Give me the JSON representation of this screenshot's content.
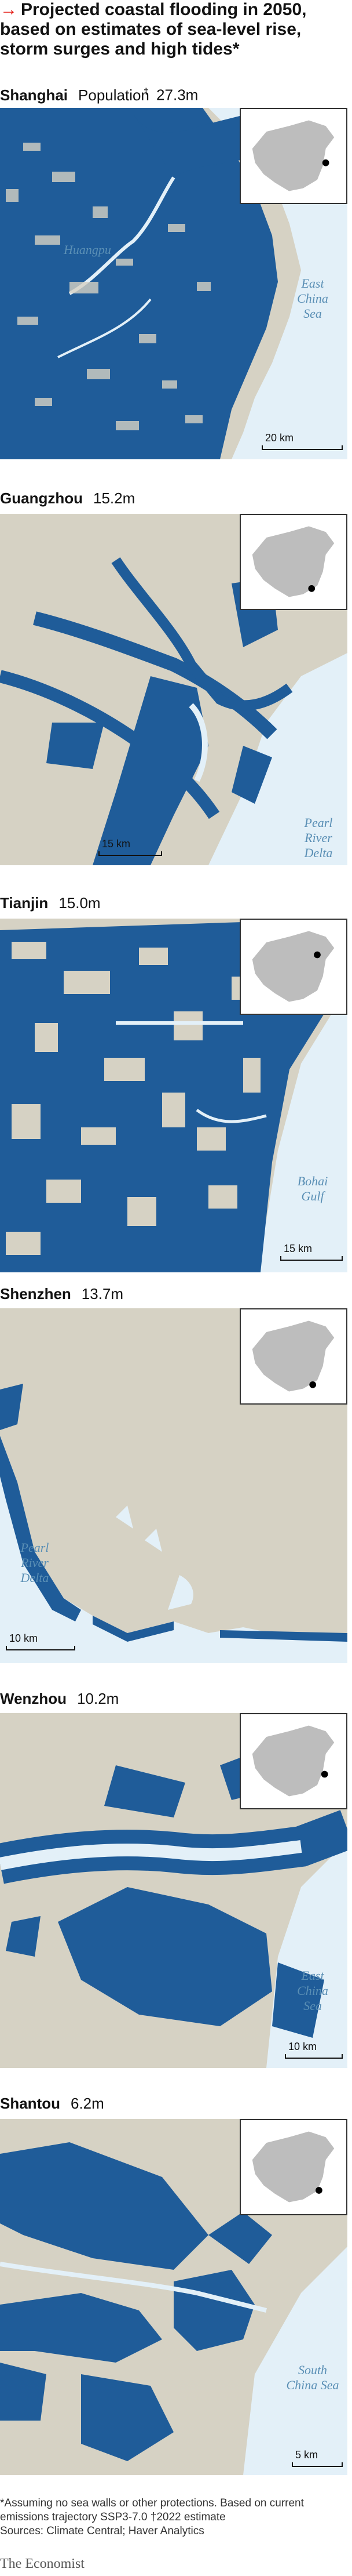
{
  "headline": {
    "arrow": "→",
    "title": "Projected coastal flooding in 2050, based on estimates of sea-level rise, storm surges and high tides*"
  },
  "population_prefix": "Population",
  "population_dagger": "†",
  "colors": {
    "flooded": "#1f5c99",
    "land": "#d6d2c4",
    "water": "#e3f0f8",
    "accent": "#e3120b"
  },
  "maps": [
    {
      "city": "Shanghai",
      "population": "27.3m",
      "labels": [
        "Huangpu"
      ],
      "sea": "East China Sea",
      "scale": "20 km"
    },
    {
      "city": "Guangzhou",
      "population": "15.2m",
      "labels": [],
      "sea": "Pearl River Delta",
      "scale": "15 km"
    },
    {
      "city": "Tianjin",
      "population": "15.0m",
      "labels": [],
      "sea": "Bohai Gulf",
      "scale": "15 km"
    },
    {
      "city": "Shenzhen",
      "population": "13.7m",
      "labels": [],
      "sea": "Pearl River Delta",
      "scale": "10 km"
    },
    {
      "city": "Wenzhou",
      "population": "10.2m",
      "labels": [],
      "sea": "East China Sea",
      "scale": "10 km"
    },
    {
      "city": "Shantou",
      "population": "6.2m",
      "labels": [],
      "sea": "South China Sea",
      "scale": "5 km"
    }
  ],
  "footnote": {
    "line1": "*Assuming no sea walls or other protections. Based on current emissions trajectory SSP3-7.0   †2022 estimate",
    "line2": "Sources: Climate Central; Haver Analytics"
  },
  "source_logo": "The Economist"
}
